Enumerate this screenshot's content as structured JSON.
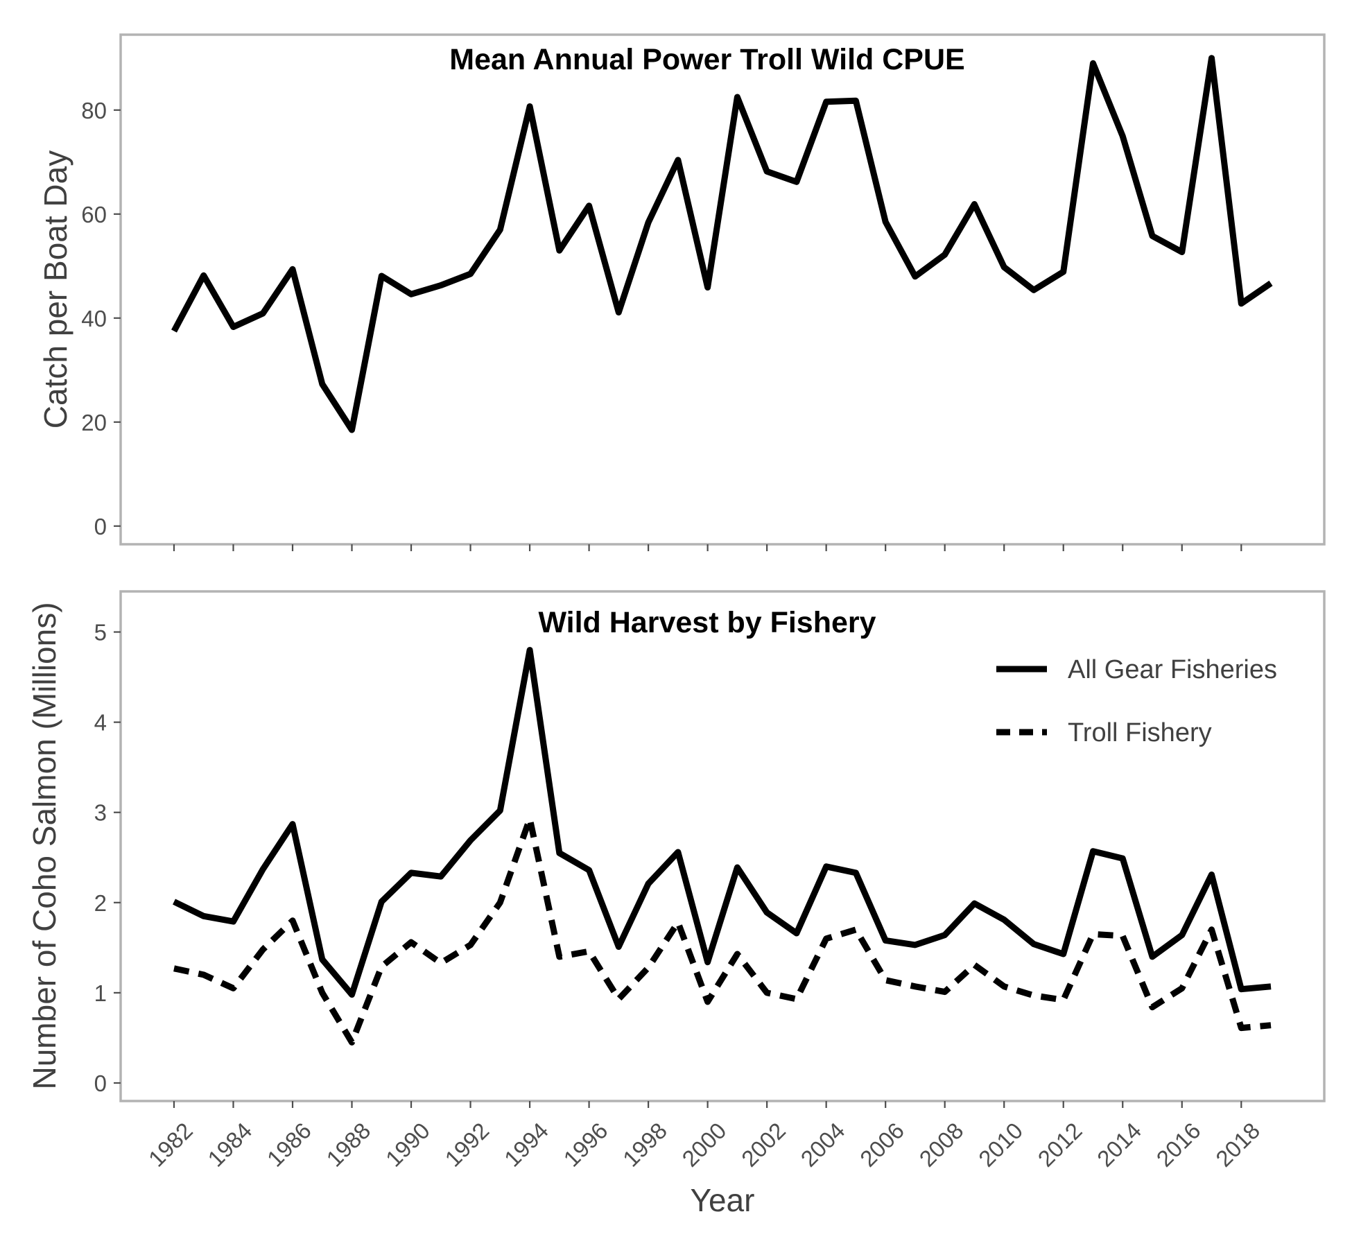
{
  "chart_data": [
    {
      "type": "line",
      "title": "Mean Annual Power Troll Wild CPUE",
      "ylabel": "Catch per Boat Day",
      "xlabel": "",
      "ylim": [
        -3.5,
        94.5
      ],
      "yticks": [
        0,
        20,
        40,
        60,
        80
      ],
      "xlim": [
        1980.2,
        2020.8
      ],
      "xticks": [
        1982,
        1984,
        1986,
        1988,
        1990,
        1992,
        1994,
        1996,
        1998,
        2000,
        2002,
        2004,
        2006,
        2008,
        2010,
        2012,
        2014,
        2016,
        2018
      ],
      "grid": false,
      "x": [
        1982,
        1983,
        1984,
        1985,
        1986,
        1987,
        1988,
        1989,
        1990,
        1991,
        1992,
        1993,
        1994,
        1995,
        1996,
        1997,
        1998,
        1999,
        2000,
        2001,
        2002,
        2003,
        2004,
        2005,
        2006,
        2007,
        2008,
        2009,
        2010,
        2011,
        2012,
        2013,
        2014,
        2015,
        2016,
        2017,
        2018,
        2019
      ],
      "series": [
        {
          "name": "",
          "color": "#000000",
          "dash": "solid",
          "values": [
            37.5,
            48.2,
            38.3,
            40.9,
            49.4,
            27.3,
            18.5,
            48.1,
            44.6,
            46.3,
            48.5,
            57.0,
            80.7,
            53.0,
            61.6,
            41.1,
            58.4,
            70.4,
            45.9,
            82.5,
            68.2,
            66.2,
            81.6,
            81.8,
            58.5,
            48.0,
            52.2,
            61.9,
            49.8,
            45.4,
            48.9,
            89.0,
            75.0,
            55.8,
            52.7,
            90.0,
            42.8,
            46.7
          ]
        }
      ]
    },
    {
      "type": "line",
      "title": "Wild Harvest by Fishery",
      "ylabel": "Number of Coho Salmon (Millions)",
      "xlabel": "Year",
      "ylim": [
        -0.2,
        5.45
      ],
      "yticks": [
        0,
        1,
        2,
        3,
        4,
        5
      ],
      "xlim": [
        1980.2,
        2020.8
      ],
      "xticks": [
        1982,
        1984,
        1986,
        1988,
        1990,
        1992,
        1994,
        1996,
        1998,
        2000,
        2002,
        2004,
        2006,
        2008,
        2010,
        2012,
        2014,
        2016,
        2018
      ],
      "grid": false,
      "legend": "top-right",
      "x": [
        1982,
        1983,
        1984,
        1985,
        1986,
        1987,
        1988,
        1989,
        1990,
        1991,
        1992,
        1993,
        1994,
        1995,
        1996,
        1997,
        1998,
        1999,
        2000,
        2001,
        2002,
        2003,
        2004,
        2005,
        2006,
        2007,
        2008,
        2009,
        2010,
        2011,
        2012,
        2013,
        2014,
        2015,
        2016,
        2017,
        2018,
        2019
      ],
      "series": [
        {
          "name": "All Gear Fisheries",
          "color": "#000000",
          "dash": "solid",
          "values": [
            2.01,
            1.85,
            1.79,
            2.37,
            2.87,
            1.37,
            0.98,
            2.01,
            2.33,
            2.29,
            2.69,
            3.02,
            4.8,
            2.55,
            2.36,
            1.51,
            2.21,
            2.56,
            1.34,
            2.39,
            1.89,
            1.66,
            2.4,
            2.33,
            1.58,
            1.53,
            1.64,
            1.99,
            1.81,
            1.54,
            1.43,
            2.57,
            2.49,
            1.4,
            1.64,
            2.31,
            1.04,
            1.07
          ]
        },
        {
          "name": "Troll Fishery",
          "color": "#000000",
          "dash": "dashed",
          "values": [
            1.27,
            1.2,
            1.05,
            1.48,
            1.8,
            1.0,
            0.45,
            1.29,
            1.56,
            1.33,
            1.53,
            2.0,
            2.93,
            1.4,
            1.46,
            0.93,
            1.28,
            1.78,
            0.9,
            1.43,
            1.0,
            0.93,
            1.6,
            1.7,
            1.14,
            1.07,
            1.01,
            1.31,
            1.07,
            0.97,
            0.92,
            1.65,
            1.63,
            0.84,
            1.05,
            1.7,
            0.61,
            0.64
          ]
        }
      ]
    }
  ]
}
